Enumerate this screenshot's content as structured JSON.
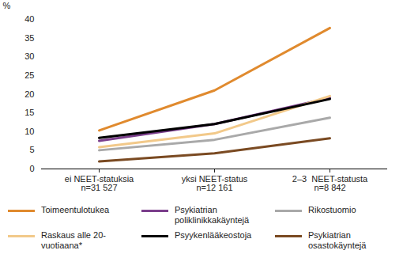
{
  "chart_data": {
    "type": "line",
    "y_label": "%",
    "categories": [
      "ei NEET-statuksia\nn=31 527",
      "yksi NEET-status\nn=12 161",
      "2–3  NEET-statusta\nn=8 842"
    ],
    "ylim": [
      0,
      40
    ],
    "yticks": [
      0,
      5,
      10,
      15,
      20,
      25,
      30,
      35,
      40
    ],
    "grid": false,
    "legend": "bottom",
    "series": [
      {
        "name": "Toimeentulotukea",
        "color": "#e08a2e",
        "values": [
          10.3,
          21,
          37.7
        ]
      },
      {
        "name": "Psykiatrian poliklinikkakäyntejä",
        "color": "#7b3f8c",
        "values": [
          7.5,
          12,
          19
        ]
      },
      {
        "name": "Rikostuomio",
        "color": "#a9a9a9",
        "values": [
          5,
          7.8,
          13.7
        ]
      },
      {
        "name": "Raskaus alle 20-vuotiaana*",
        "color": "#f2c98a",
        "values": [
          5.8,
          9.5,
          19.5
        ]
      },
      {
        "name": "Psyykenlääkeostoja",
        "color": "#000000",
        "values": [
          8.3,
          12,
          18.7
        ]
      },
      {
        "name": "Psykiatrian osastokäyntejä",
        "color": "#7a4a22",
        "values": [
          2,
          4.2,
          8.2
        ]
      }
    ]
  }
}
